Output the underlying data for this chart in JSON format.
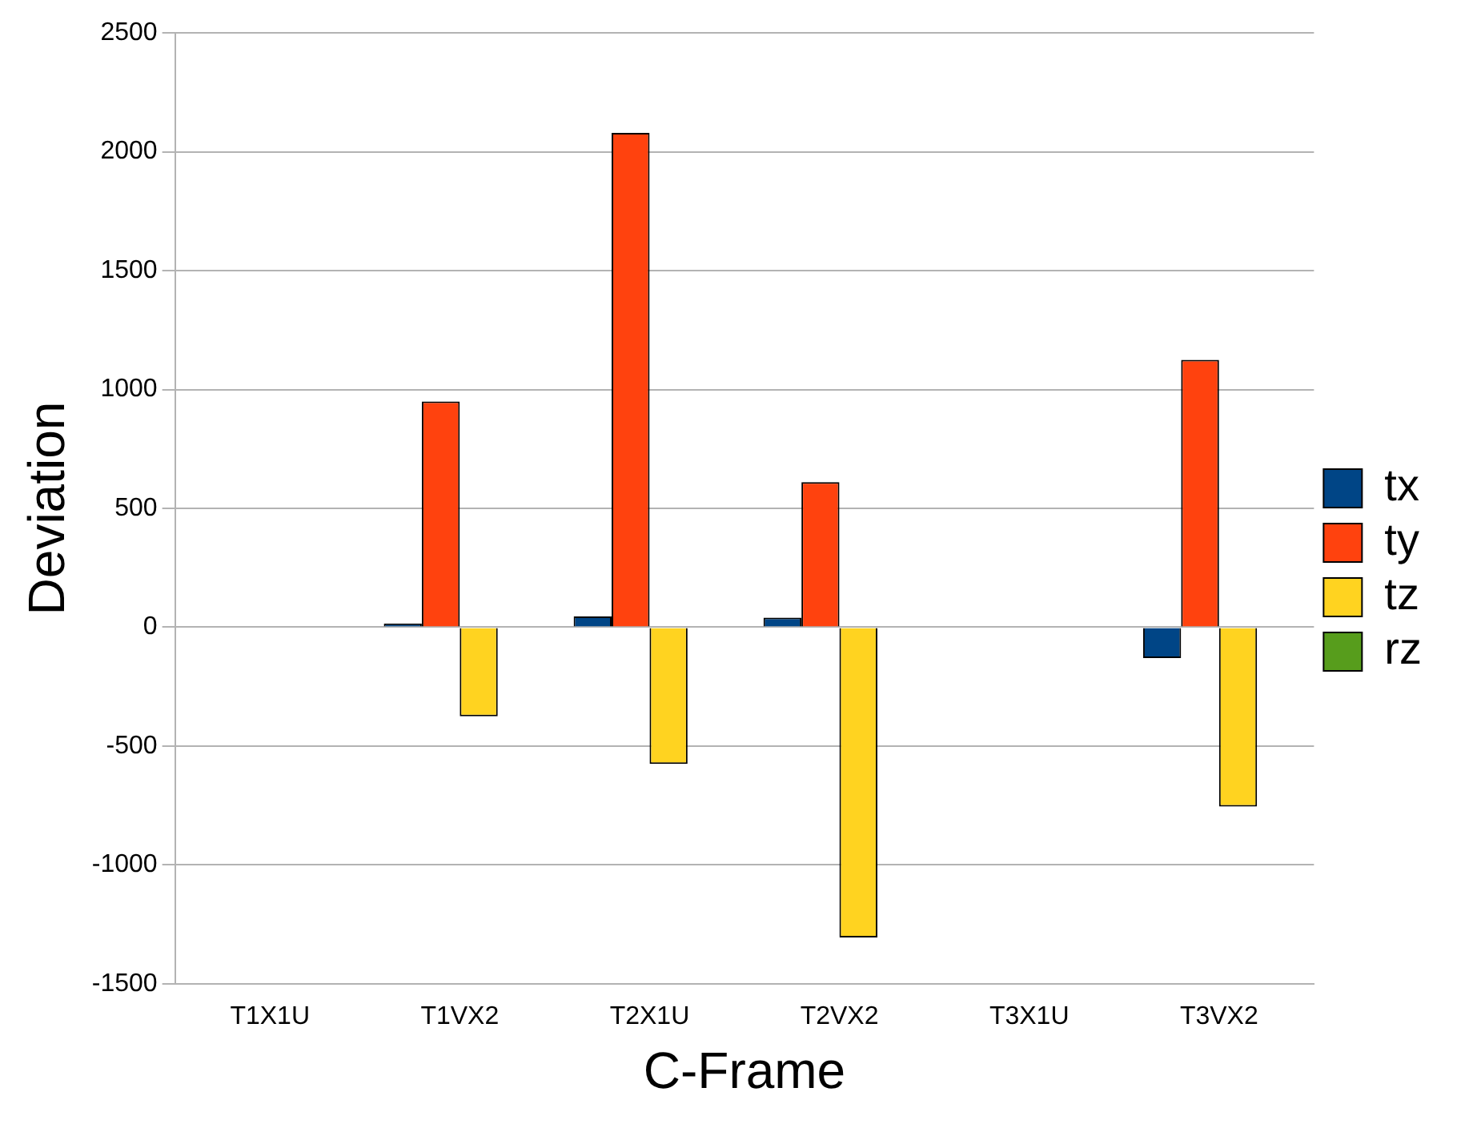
{
  "chart_data": {
    "type": "bar",
    "xlabel": "C-Frame",
    "ylabel": "Deviation",
    "categories": [
      "T1X1U",
      "T1VX2",
      "T2X1U",
      "T2VX2",
      "T3X1U",
      "T3VX2"
    ],
    "series": [
      {
        "name": "tx",
        "color": "#004586",
        "values": [
          null,
          15,
          45,
          40,
          null,
          -130
        ]
      },
      {
        "name": "ty",
        "color": "#ff420e",
        "values": [
          null,
          950,
          2080,
          610,
          null,
          1125
        ]
      },
      {
        "name": "tz",
        "color": "#ffd320",
        "values": [
          null,
          -375,
          -575,
          -1305,
          null,
          -755
        ]
      },
      {
        "name": "rz",
        "color": "#579d1c",
        "values": [
          null,
          0,
          0,
          0,
          null,
          0
        ]
      }
    ],
    "ylim": [
      -1500,
      2500
    ],
    "yticks": [
      -1500,
      -1000,
      -500,
      0,
      500,
      1000,
      1500,
      2000,
      2500
    ],
    "grid": "y",
    "legend": "right"
  }
}
